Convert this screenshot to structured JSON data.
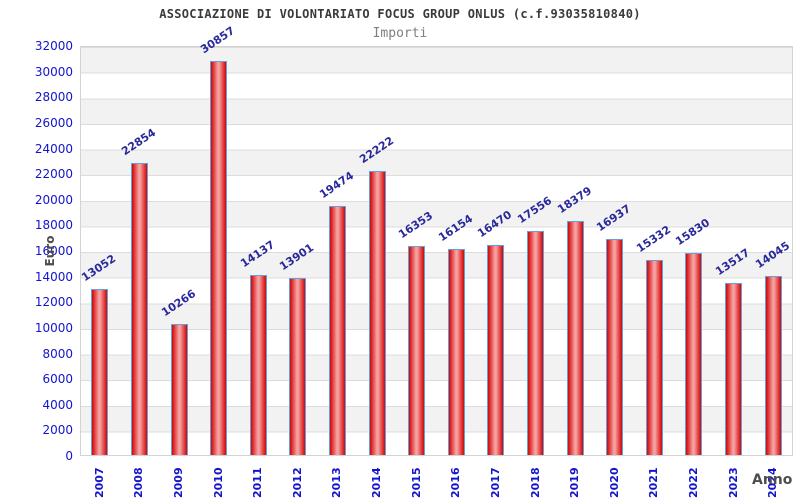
{
  "header": {
    "title": "ASSOCIAZIONE DI VOLONTARIATO FOCUS GROUP ONLUS (c.f.93035810840)",
    "subtitle": "Importi"
  },
  "chart_data": {
    "type": "bar",
    "title": "ASSOCIAZIONE DI VOLONTARIATO FOCUS GROUP ONLUS (c.f.93035810840)",
    "subtitle": "Importi",
    "xlabel": "Anno",
    "ylabel": "Euro",
    "categories": [
      "2007",
      "2008",
      "2009",
      "2010",
      "2011",
      "2012",
      "2013",
      "2014",
      "2015",
      "2016",
      "2017",
      "2018",
      "2019",
      "2020",
      "2021",
      "2022",
      "2023",
      "2024"
    ],
    "values": [
      13052,
      22854,
      10266,
      30857,
      14137,
      13901,
      19474,
      22222,
      16353,
      16154,
      16470,
      17556,
      18379,
      16937,
      15332,
      15830,
      13517,
      14045
    ],
    "ylim": [
      0,
      32000
    ],
    "ytick_step": 2000,
    "grid": "horizontal-bands",
    "legend": "none",
    "colors": {
      "bar_edge": "#64a0dc",
      "bar_dark": "#c01010",
      "bar_light": "#f4a2a2",
      "value_label": "#28289b",
      "tick_label": "#1414cc",
      "axis_title": "#4d4d4d",
      "band_gray": "#f2f2f2",
      "gridline": "#dcdcdc",
      "title_text": "#3a3a3a",
      "subtitle_text": "#7f7f7f"
    }
  }
}
